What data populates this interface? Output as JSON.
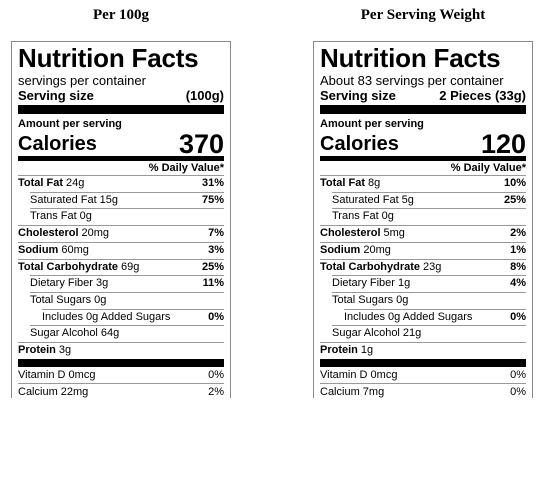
{
  "labels": [
    {
      "heading": "Per 100g",
      "title": "Nutrition Facts",
      "servings": "servings per container",
      "serving_size_label": "Serving size",
      "serving_size": "(100g)",
      "amount_per_serving": "Amount per serving",
      "calories_label": "Calories",
      "calories": "370",
      "daily_value_header": "% Daily Value*",
      "nutrients": [
        {
          "name": "Total Fat",
          "amount": "24g",
          "dv": "31%",
          "bold": true,
          "indent": 0
        },
        {
          "name": "Saturated Fat",
          "amount": "15g",
          "dv": "75%",
          "bold": false,
          "indent": 1
        },
        {
          "name": "Trans Fat",
          "amount": "0g",
          "bold": false,
          "indent": 1
        },
        {
          "name": "Cholesterol",
          "amount": "20mg",
          "dv": "7%",
          "bold": true,
          "indent": 0
        },
        {
          "name": "Sodium",
          "amount": "60mg",
          "dv": "3%",
          "bold": true,
          "indent": 0
        },
        {
          "name": "Total Carbohydrate",
          "amount": "69g",
          "dv": "25%",
          "bold": true,
          "indent": 0
        },
        {
          "name": "Dietary Fiber",
          "amount": "3g",
          "dv": "11%",
          "bold": false,
          "indent": 1
        },
        {
          "name": "Total Sugars",
          "amount": "0g",
          "bold": false,
          "indent": 1
        },
        {
          "name": "Includes 0g Added Sugars",
          "dv": "0%",
          "bold": false,
          "indent": 2
        },
        {
          "name": "Sugar Alcohol",
          "amount": "64g",
          "bold": false,
          "indent": 1
        },
        {
          "name": "Protein",
          "amount": "3g",
          "bold": true,
          "indent": 0
        }
      ],
      "vitamins": [
        {
          "name": "Vitamin D 0mcg",
          "dv": "0%"
        },
        {
          "name": "Calcium 22mg",
          "dv": "2%"
        }
      ]
    },
    {
      "heading": "Per Serving Weight",
      "title": "Nutrition Facts",
      "servings": "About 83 servings per container",
      "serving_size_label": "Serving size",
      "serving_size": "2 Pieces (33g)",
      "amount_per_serving": "Amount per serving",
      "calories_label": "Calories",
      "calories": "120",
      "daily_value_header": "% Daily Value*",
      "nutrients": [
        {
          "name": "Total Fat",
          "amount": "8g",
          "dv": "10%",
          "bold": true,
          "indent": 0
        },
        {
          "name": "Saturated Fat",
          "amount": "5g",
          "dv": "25%",
          "bold": false,
          "indent": 1
        },
        {
          "name": "Trans Fat",
          "amount": "0g",
          "bold": false,
          "indent": 1
        },
        {
          "name": "Cholesterol",
          "amount": "5mg",
          "dv": "2%",
          "bold": true,
          "indent": 0
        },
        {
          "name": "Sodium",
          "amount": "20mg",
          "dv": "1%",
          "bold": true,
          "indent": 0
        },
        {
          "name": "Total Carbohydrate",
          "amount": "23g",
          "dv": "8%",
          "bold": true,
          "indent": 0
        },
        {
          "name": "Dietary Fiber",
          "amount": "1g",
          "dv": "4%",
          "bold": false,
          "indent": 1
        },
        {
          "name": "Total Sugars",
          "amount": "0g",
          "bold": false,
          "indent": 1
        },
        {
          "name": "Includes 0g Added Sugars",
          "dv": "0%",
          "bold": false,
          "indent": 2
        },
        {
          "name": "Sugar Alcohol",
          "amount": "21g",
          "bold": false,
          "indent": 1
        },
        {
          "name": "Protein",
          "amount": "1g",
          "bold": true,
          "indent": 0
        }
      ],
      "vitamins": [
        {
          "name": "Vitamin D 0mcg",
          "dv": "0%"
        },
        {
          "name": "Calcium 7mg",
          "dv": "0%"
        }
      ]
    }
  ]
}
